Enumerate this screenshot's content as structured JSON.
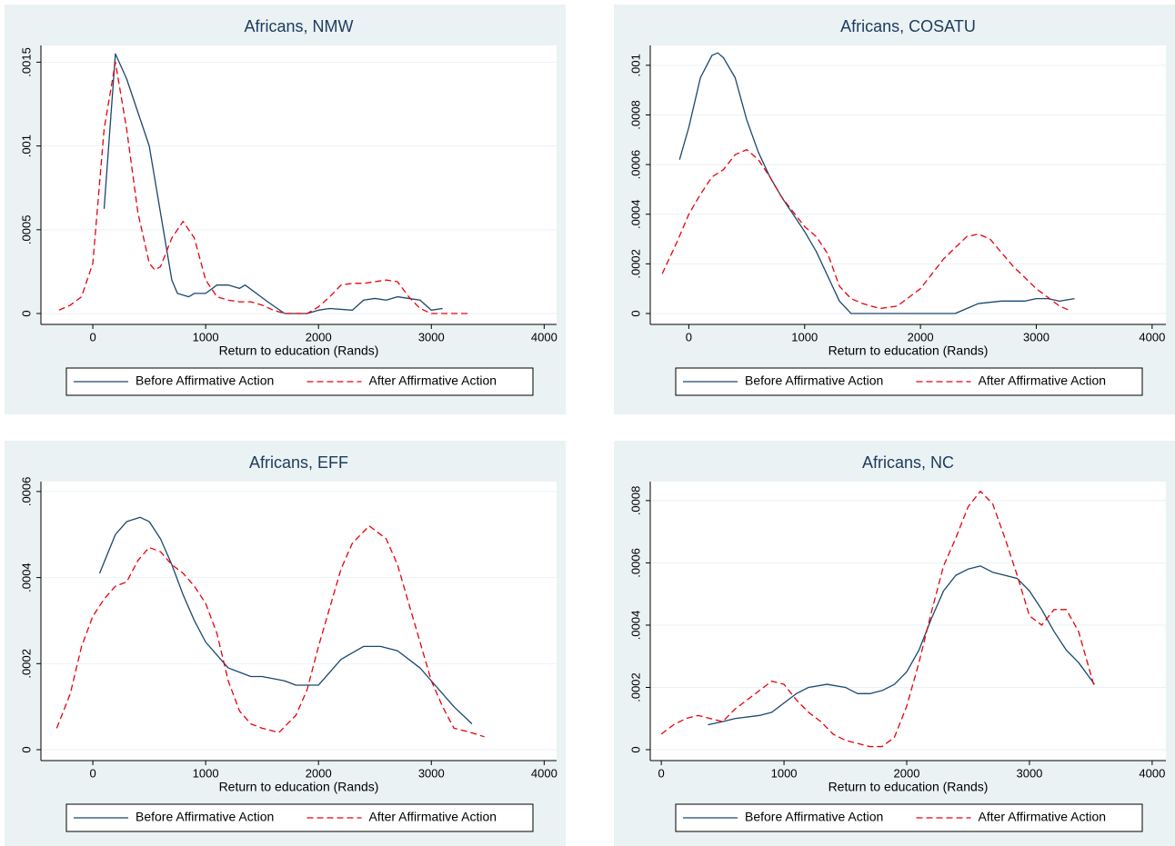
{
  "chart_data": [
    {
      "type": "line",
      "title": "Africans, NMW",
      "xlabel": "Return to education (Rands)",
      "xlim": [
        -460,
        4110
      ],
      "xticks": [
        0,
        1000,
        2000,
        3000,
        4000
      ],
      "ylim": [
        -6.5e-05,
        0.0016
      ],
      "yticks": [
        0,
        {
          "value": 0.0005,
          "label": ".0005"
        },
        {
          "value": 0.001,
          "label": ".001"
        },
        {
          "value": 0.0015,
          "label": ".0015"
        }
      ],
      "grid": true,
      "series": [
        {
          "name": "Before Affirmative Action",
          "color": "#1a476f",
          "linestyle": "solid",
          "x": [
            100,
            200,
            300,
            400,
            500,
            600,
            700,
            750,
            850,
            900,
            1000,
            1100,
            1200,
            1300,
            1350,
            1450,
            1550,
            1700,
            1900,
            2000,
            2100,
            2300,
            2400,
            2500,
            2600,
            2700,
            2800,
            2900,
            3000,
            3100
          ],
          "values": [
            0.000625,
            0.00155,
            0.0014,
            0.0012,
            0.001,
            0.0006,
            0.0002,
            0.00012,
            0.0001,
            0.00012,
            0.00012,
            0.00017,
            0.00017,
            0.00015,
            0.00017,
            0.00012,
            7e-05,
            0,
            0,
            2e-05,
            3e-05,
            2e-05,
            8e-05,
            9e-05,
            8e-05,
            0.0001,
            9e-05,
            8e-05,
            2e-05,
            3e-05
          ]
        },
        {
          "name": "After Affirmative Action",
          "color": "#e8000b",
          "linestyle": "dashed",
          "x": [
            -300,
            -200,
            -100,
            0,
            100,
            200,
            300,
            400,
            500,
            550,
            600,
            700,
            800,
            900,
            1000,
            1100,
            1200,
            1300,
            1400,
            1500,
            1600,
            1700,
            1900,
            2000,
            2100,
            2200,
            2300,
            2400,
            2500,
            2600,
            2700,
            2800,
            2900,
            3000,
            3350
          ],
          "values": [
            2e-05,
            5e-05,
            0.0001,
            0.0003,
            0.0011,
            0.0015,
            0.0011,
            0.0006,
            0.0003,
            0.00026,
            0.00028,
            0.00045,
            0.00055,
            0.00045,
            0.0002,
            0.0001,
            8e-05,
            7e-05,
            7e-05,
            5e-05,
            2e-05,
            0,
            0,
            4e-05,
            0.0001,
            0.00017,
            0.00018,
            0.00018,
            0.00019,
            0.0002,
            0.00019,
            0.0001,
            3e-05,
            0,
            0
          ]
        }
      ]
    },
    {
      "type": "line",
      "title": "Africans, COSATU",
      "xlabel": "Return to education (Rands)",
      "xlim": [
        -333,
        4119
      ],
      "xticks": [
        0,
        1000,
        2000,
        3000,
        4000
      ],
      "ylim": [
        -4.4e-05,
        0.00108
      ],
      "yticks": [
        0,
        {
          "value": 0.0002,
          "label": ".0002"
        },
        {
          "value": 0.0004,
          "label": ".0004"
        },
        {
          "value": 0.0006,
          "label": ".0006"
        },
        {
          "value": 0.0008,
          "label": ".0008"
        },
        {
          "value": 0.001,
          "label": ".001"
        }
      ],
      "grid": true,
      "series": [
        {
          "name": "Before Affirmative Action",
          "color": "#1a476f",
          "linestyle": "solid",
          "x": [
            -80,
            0,
            100,
            200,
            250,
            300,
            400,
            500,
            600,
            700,
            800,
            900,
            1000,
            1100,
            1200,
            1300,
            1400,
            2300,
            2400,
            2500,
            2700,
            2900,
            3000,
            3100,
            3200,
            3330
          ],
          "values": [
            0.00062,
            0.00075,
            0.00095,
            0.00104,
            0.00105,
            0.00103,
            0.00095,
            0.00078,
            0.00065,
            0.00055,
            0.00047,
            0.0004,
            0.00033,
            0.00025,
            0.00015,
            5e-05,
            0,
            0,
            2e-05,
            4e-05,
            5e-05,
            5e-05,
            6e-05,
            6e-05,
            5e-05,
            6e-05
          ]
        },
        {
          "name": "After Affirmative Action",
          "color": "#e8000b",
          "linestyle": "dashed",
          "x": [
            -230,
            -100,
            0,
            100,
            200,
            300,
            400,
            500,
            600,
            700,
            800,
            900,
            1000,
            1100,
            1200,
            1300,
            1400,
            1500,
            1650,
            1800,
            2000,
            2200,
            2400,
            2500,
            2600,
            2800,
            3000,
            3200,
            3300
          ],
          "values": [
            0.00016,
            0.00029,
            0.0004,
            0.00048,
            0.00055,
            0.00058,
            0.00064,
            0.00066,
            0.00062,
            0.00055,
            0.00047,
            0.00041,
            0.00035,
            0.00031,
            0.00024,
            0.00011,
            6e-05,
            4e-05,
            2e-05,
            3e-05,
            0.0001,
            0.00022,
            0.00031,
            0.00032,
            0.0003,
            0.00019,
            0.0001,
            3e-05,
            1e-05
          ]
        }
      ]
    },
    {
      "type": "line",
      "title": "Africans, EFF",
      "xlabel": "Return to education (Rands)",
      "xlim": [
        -460,
        4110
      ],
      "xticks": [
        0,
        1000,
        2000,
        3000,
        4000
      ],
      "ylim": [
        -2.53e-05,
        0.000623
      ],
      "yticks": [
        0,
        {
          "value": 0.0002,
          "label": ".0002"
        },
        {
          "value": 0.0004,
          "label": ".0004"
        },
        {
          "value": 0.0006,
          "label": ".0006"
        }
      ],
      "grid": true,
      "series": [
        {
          "name": "Before Affirmative Action",
          "color": "#1a476f",
          "linestyle": "solid",
          "x": [
            60,
            200,
            300,
            420,
            500,
            600,
            700,
            800,
            900,
            1000,
            1100,
            1200,
            1300,
            1400,
            1500,
            1700,
            1800,
            2000,
            2100,
            2200,
            2400,
            2550,
            2700,
            2900,
            3000,
            3200,
            3360
          ],
          "values": [
            0.00041,
            0.0005,
            0.00053,
            0.00054,
            0.00053,
            0.00049,
            0.00043,
            0.00036,
            0.0003,
            0.00025,
            0.00022,
            0.00019,
            0.00018,
            0.00017,
            0.00017,
            0.00016,
            0.00015,
            0.00015,
            0.00018,
            0.00021,
            0.00024,
            0.00024,
            0.00023,
            0.00019,
            0.00016,
            0.0001,
            6e-05
          ]
        },
        {
          "name": "After Affirmative Action",
          "color": "#e8000b",
          "linestyle": "dashed",
          "x": [
            -320,
            -200,
            -100,
            0,
            100,
            200,
            300,
            400,
            500,
            600,
            700,
            800,
            900,
            1000,
            1100,
            1200,
            1300,
            1400,
            1500,
            1650,
            1800,
            1900,
            2000,
            2100,
            2200,
            2300,
            2450,
            2600,
            2700,
            2800,
            2900,
            3000,
            3100,
            3200,
            3350,
            3470
          ],
          "values": [
            5e-05,
            0.00013,
            0.00024,
            0.00031,
            0.00035,
            0.00038,
            0.00039,
            0.00044,
            0.00047,
            0.00046,
            0.00043,
            0.00041,
            0.00038,
            0.00034,
            0.00027,
            0.00016,
            9e-05,
            6e-05,
            5e-05,
            4e-05,
            8e-05,
            0.00014,
            0.00024,
            0.00033,
            0.00042,
            0.00048,
            0.00052,
            0.00049,
            0.00043,
            0.00034,
            0.00025,
            0.00016,
            0.0001,
            5e-05,
            4e-05,
            3e-05
          ]
        }
      ]
    },
    {
      "type": "line",
      "title": "Africans, NC",
      "xlabel": "Return to education (Rands)",
      "xlim": [
        -90,
        4112
      ],
      "xticks": [
        0,
        1000,
        2000,
        3000,
        4000
      ],
      "ylim": [
        -3.5e-05,
        0.000861
      ],
      "yticks": [
        0,
        {
          "value": 0.0002,
          "label": ".0002"
        },
        {
          "value": 0.0004,
          "label": ".0004"
        },
        {
          "value": 0.0006,
          "label": ".0006"
        },
        {
          "value": 0.0008,
          "label": ".0008"
        }
      ],
      "grid": true,
      "series": [
        {
          "name": "Before Affirmative Action",
          "color": "#1a476f",
          "linestyle": "solid",
          "x": [
            380,
            500,
            600,
            800,
            900,
            1000,
            1100,
            1200,
            1350,
            1500,
            1600,
            1700,
            1800,
            1900,
            2000,
            2100,
            2200,
            2300,
            2400,
            2500,
            2600,
            2700,
            2800,
            2900,
            3000,
            3100,
            3200,
            3300,
            3400,
            3530
          ],
          "values": [
            8e-05,
            9e-05,
            0.0001,
            0.00011,
            0.00012,
            0.00015,
            0.00018,
            0.0002,
            0.00021,
            0.0002,
            0.00018,
            0.00018,
            0.00019,
            0.00021,
            0.00025,
            0.00032,
            0.00042,
            0.00051,
            0.00056,
            0.00058,
            0.00059,
            0.00057,
            0.00056,
            0.00055,
            0.00051,
            0.00045,
            0.00038,
            0.00032,
            0.00028,
            0.00021
          ]
        },
        {
          "name": "After Affirmative Action",
          "color": "#e8000b",
          "linestyle": "dashed",
          "x": [
            0,
            100,
            200,
            300,
            400,
            500,
            600,
            700,
            800,
            900,
            1000,
            1100,
            1200,
            1300,
            1400,
            1500,
            1600,
            1700,
            1800,
            1900,
            2000,
            2100,
            2200,
            2300,
            2400,
            2500,
            2600,
            2700,
            2800,
            2900,
            3000,
            3100,
            3200,
            3300,
            3400,
            3530
          ],
          "values": [
            5e-05,
            8e-05,
            0.0001,
            0.00011,
            0.0001,
            9e-05,
            0.00013,
            0.00016,
            0.00019,
            0.00022,
            0.00021,
            0.00016,
            0.00012,
            9e-05,
            5e-05,
            3e-05,
            2e-05,
            1e-05,
            1e-05,
            4e-05,
            0.00014,
            0.00028,
            0.00044,
            0.00059,
            0.00068,
            0.00078,
            0.00083,
            0.00079,
            0.00068,
            0.00056,
            0.00043,
            0.0004,
            0.00045,
            0.00045,
            0.00038,
            0.0002
          ]
        }
      ]
    }
  ]
}
